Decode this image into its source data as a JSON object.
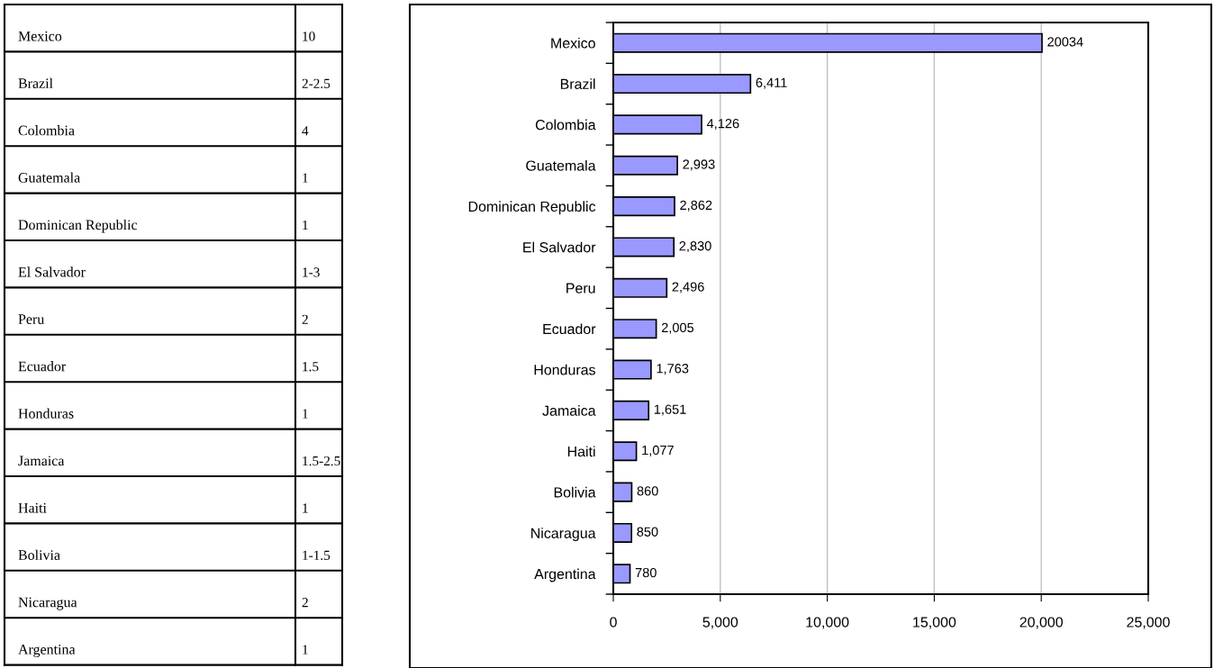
{
  "chart_data": [
    {
      "type": "other",
      "categories": [
        "Mexico",
        "Brazil",
        "Colombia",
        "Guatemala",
        "Dominican Republic",
        "El Salvador",
        "Peru",
        "Ecuador",
        "Honduras",
        "Jamaica",
        "Haiti",
        "Bolivia",
        "Nicaragua",
        "Argentina"
      ],
      "value_labels": [
        "10",
        "2-2.5",
        "4",
        "1",
        "1",
        "1-3",
        "2",
        "1.5",
        "1",
        "1.5-2.5",
        "1",
        "1-1.5",
        "2",
        "1"
      ]
    },
    {
      "type": "bar",
      "orientation": "horizontal",
      "categories": [
        "Mexico",
        "Brazil",
        "Colombia",
        "Guatemala",
        "Dominican Republic",
        "El Salvador",
        "Peru",
        "Ecuador",
        "Honduras",
        "Jamaica",
        "Haiti",
        "Bolivia",
        "Nicaragua",
        "Argentina"
      ],
      "values": [
        20034,
        6411,
        4126,
        2993,
        2862,
        2830,
        2496,
        2005,
        1763,
        1651,
        1077,
        860,
        850,
        780
      ],
      "value_labels": [
        "20034",
        "6,411",
        "4,126",
        "2,993",
        "2,862",
        "2,830",
        "2,496",
        "2,005",
        "1,763",
        "1,651",
        "1,077",
        "860",
        "850",
        "780"
      ],
      "color": "#9999ff",
      "xlim": [
        0,
        25000
      ],
      "xticks": [
        {
          "value": 0,
          "label": "0"
        },
        {
          "value": 5000,
          "label": "5,000"
        },
        {
          "value": 10000,
          "label": "10,000"
        },
        {
          "value": 15000,
          "label": "15,000"
        },
        {
          "value": 20000,
          "label": "20,000"
        },
        {
          "value": 25000,
          "label": "25,000"
        }
      ],
      "grid": "x"
    }
  ]
}
